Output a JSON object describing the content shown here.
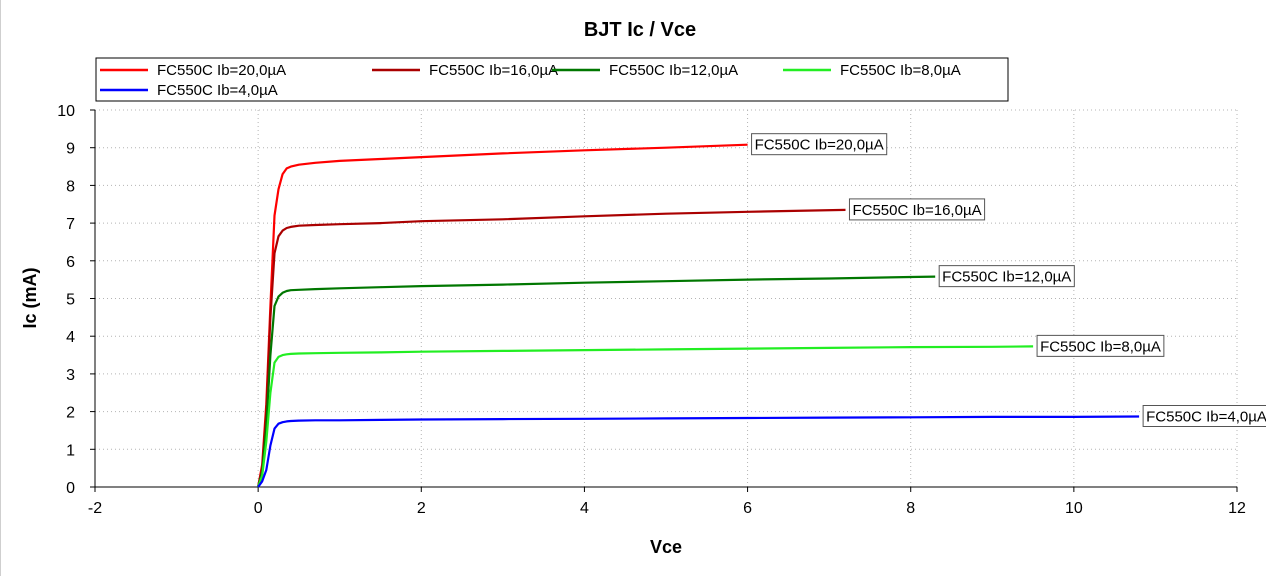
{
  "chart_data": {
    "type": "line",
    "title": "BJT Ic / Vce",
    "xlabel": "Vce",
    "ylabel": "Ic (mA)",
    "xlim": [
      -2,
      12
    ],
    "ylim": [
      0,
      10
    ],
    "xticks": [
      -2,
      0,
      2,
      4,
      6,
      8,
      10,
      12
    ],
    "yticks": [
      0,
      1,
      2,
      3,
      4,
      5,
      6,
      7,
      8,
      9,
      10
    ],
    "grid": true,
    "legend_placement": "top",
    "series": [
      {
        "name": "FC550C Ib=20,0µA",
        "color": "#ff0000",
        "x": [
          0,
          0.05,
          0.1,
          0.15,
          0.2,
          0.25,
          0.3,
          0.35,
          0.4,
          0.5,
          0.7,
          1,
          1.5,
          2,
          3,
          4,
          5,
          6
        ],
        "y": [
          0,
          0.6,
          2.2,
          4.8,
          7.2,
          7.9,
          8.3,
          8.45,
          8.5,
          8.55,
          8.6,
          8.65,
          8.7,
          8.75,
          8.85,
          8.93,
          9.0,
          9.08
        ]
      },
      {
        "name": "FC550C Ib=16,0µA",
        "color": "#aa0000",
        "x": [
          0,
          0.05,
          0.1,
          0.15,
          0.2,
          0.25,
          0.3,
          0.35,
          0.4,
          0.5,
          0.7,
          1,
          1.5,
          2,
          3,
          4,
          5,
          6,
          7.2
        ],
        "y": [
          0,
          0.5,
          2.0,
          4.5,
          6.2,
          6.65,
          6.8,
          6.87,
          6.9,
          6.93,
          6.95,
          6.97,
          7.0,
          7.05,
          7.1,
          7.18,
          7.25,
          7.3,
          7.35
        ]
      },
      {
        "name": "FC550C Ib=12,0µA",
        "color": "#007700",
        "x": [
          0,
          0.05,
          0.1,
          0.15,
          0.2,
          0.25,
          0.3,
          0.35,
          0.4,
          0.5,
          0.7,
          1,
          1.5,
          2,
          3,
          4,
          5,
          6,
          7,
          8,
          8.3
        ],
        "y": [
          0,
          0.4,
          1.6,
          3.5,
          4.8,
          5.05,
          5.15,
          5.2,
          5.22,
          5.23,
          5.25,
          5.27,
          5.3,
          5.33,
          5.37,
          5.42,
          5.46,
          5.5,
          5.53,
          5.57,
          5.58
        ]
      },
      {
        "name": "FC550C Ib=8,0µA",
        "color": "#22ee22",
        "x": [
          0,
          0.05,
          0.1,
          0.15,
          0.2,
          0.25,
          0.3,
          0.35,
          0.4,
          0.5,
          0.7,
          1,
          1.5,
          2,
          3,
          4,
          5,
          6,
          7,
          8,
          9,
          9.5
        ],
        "y": [
          0,
          0.3,
          1.2,
          2.5,
          3.3,
          3.45,
          3.5,
          3.52,
          3.53,
          3.54,
          3.55,
          3.56,
          3.57,
          3.59,
          3.61,
          3.63,
          3.65,
          3.67,
          3.69,
          3.71,
          3.72,
          3.73
        ]
      },
      {
        "name": "FC550C Ib=4,0µA",
        "color": "#0000ff",
        "x": [
          0,
          0.05,
          0.1,
          0.15,
          0.2,
          0.25,
          0.3,
          0.35,
          0.4,
          0.5,
          0.7,
          1,
          1.5,
          2,
          3,
          4,
          5,
          6,
          7,
          8,
          9,
          10,
          10.8
        ],
        "y": [
          0,
          0.15,
          0.45,
          1.1,
          1.55,
          1.68,
          1.72,
          1.74,
          1.75,
          1.76,
          1.77,
          1.77,
          1.78,
          1.79,
          1.8,
          1.81,
          1.82,
          1.83,
          1.84,
          1.85,
          1.86,
          1.86,
          1.87
        ]
      }
    ]
  }
}
